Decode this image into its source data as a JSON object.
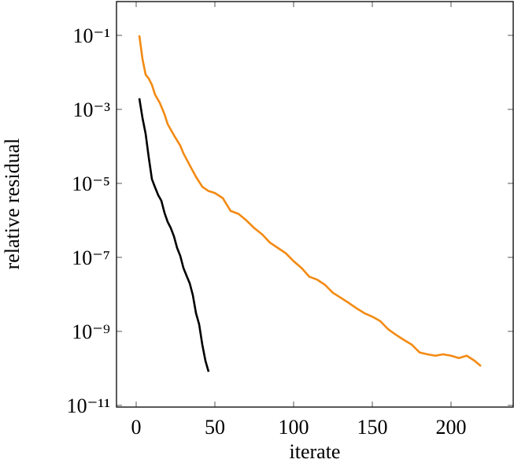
{
  "chart_data": {
    "type": "line",
    "x_label": "iterate",
    "y_label": "relative residual",
    "log_y": true,
    "xlim": [
      -12.5,
      239.5
    ],
    "ylim": [
      9e-12,
      0.82
    ],
    "xticks": [
      0,
      50,
      100,
      150,
      200
    ],
    "yticks": [
      {
        "value": 0.1,
        "label": "10⁻¹"
      },
      {
        "value": 0.001,
        "label": "10⁻³"
      },
      {
        "value": 1e-05,
        "label": "10⁻⁵"
      },
      {
        "value": 1e-07,
        "label": "10⁻⁷"
      },
      {
        "value": 1e-09,
        "label": "10⁻⁹"
      },
      {
        "value": 1e-11,
        "label": "10⁻¹¹"
      }
    ],
    "series": [
      {
        "color": "#f38a12",
        "x": [
          2,
          4,
          6,
          8,
          10,
          12,
          15,
          18,
          20,
          24,
          28,
          30,
          34,
          38,
          42,
          46,
          50,
          55,
          60,
          65,
          70,
          75,
          80,
          85,
          90,
          95,
          100,
          105,
          110,
          115,
          120,
          125,
          130,
          135,
          140,
          145,
          150,
          155,
          160,
          165,
          170,
          175,
          180,
          185,
          190,
          195,
          200,
          205,
          210,
          215,
          219
        ],
        "values": [
          0.1,
          0.023,
          0.0087,
          0.0068,
          0.0046,
          0.0025,
          0.0015,
          0.00074,
          0.0004,
          0.0002,
          0.000105,
          6.5e-05,
          3.1e-05,
          1.5e-05,
          8.1e-06,
          6.2e-06,
          5.5e-06,
          4e-06,
          1.8e-06,
          1.5e-06,
          1e-06,
          6.2e-07,
          4.2e-07,
          2.5e-07,
          1.8e-07,
          1.3e-07,
          7.9e-08,
          5.2e-08,
          3e-08,
          2.5e-08,
          1.8e-08,
          1.1e-08,
          8.1e-09,
          5.9e-09,
          4.2e-09,
          3.1e-09,
          2.5e-09,
          1.9e-09,
          1.15e-09,
          8.1e-10,
          5.9e-10,
          4.4e-10,
          2.7e-10,
          2.4e-10,
          2.2e-10,
          2.4e-10,
          2.2e-10,
          1.9e-10,
          2.2e-10,
          1.6e-10,
          1.15e-10
        ]
      },
      {
        "color": "#000000",
        "x": [
          2,
          4,
          6,
          8,
          10,
          12,
          14,
          16,
          18,
          20,
          22,
          24,
          26,
          28,
          30,
          32,
          34,
          36,
          38,
          40,
          42,
          44,
          46
        ],
        "values": [
          0.002,
          0.00059,
          0.00022,
          5e-05,
          1.3e-05,
          7.8e-06,
          4.8e-06,
          3.4e-06,
          1.6e-06,
          9.1e-07,
          6.2e-07,
          3.7e-07,
          1.8e-07,
          1.1e-07,
          5.2e-08,
          3.2e-08,
          2e-08,
          9.5e-09,
          3.1e-09,
          1.55e-09,
          4.4e-10,
          1.6e-10,
          8.1e-11
        ]
      }
    ]
  }
}
